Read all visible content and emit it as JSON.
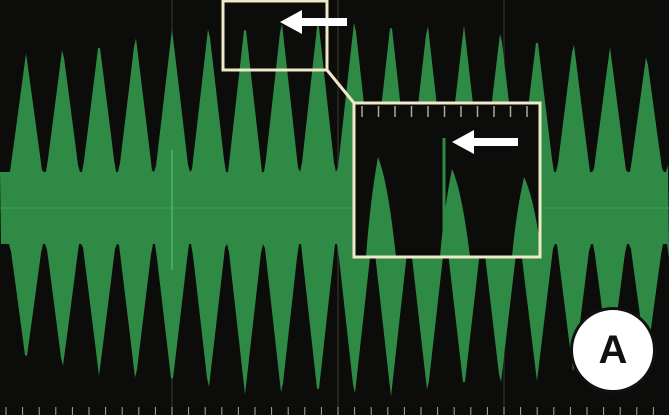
{
  "panel": {
    "label": "A"
  },
  "colors": {
    "background": "#0c0c0b",
    "signal": "#2f8a45",
    "grid": "#3a3a36",
    "tick": "#a9a9a2",
    "highlight_box": "#efe9c8",
    "arrow": "#ffffff"
  },
  "icons": {
    "arrow": "left-arrow-icon"
  }
}
